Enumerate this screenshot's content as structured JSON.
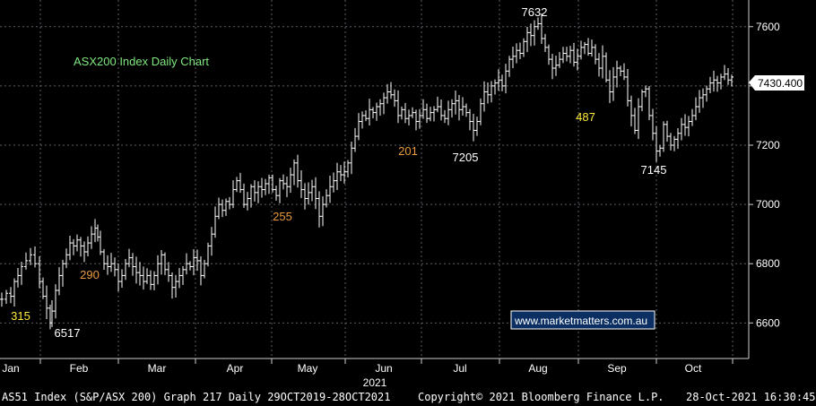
{
  "chart_data": {
    "type": "ohlc-bar",
    "title": "ASX200 Index Daily Chart",
    "x_months": [
      "Jan",
      "Feb",
      "Mar",
      "Apr",
      "May",
      "Jun",
      "Jul",
      "Aug",
      "Sep",
      "Oct"
    ],
    "x_year": "2021",
    "ylim": [
      6480,
      7690
    ],
    "yticks": [
      6600,
      6800,
      7000,
      7200,
      7400,
      7600
    ],
    "last_price": "7430.400",
    "grid": true,
    "points": [
      [
        0,
        6680
      ],
      [
        5,
        6700
      ],
      [
        10,
        6690
      ],
      [
        14,
        6740
      ],
      [
        18,
        6760
      ],
      [
        22,
        6790
      ],
      [
        27,
        6810
      ],
      [
        32,
        6830
      ],
      [
        37,
        6800
      ],
      [
        42,
        6740
      ],
      [
        46,
        6690
      ],
      [
        50,
        6650
      ],
      [
        54,
        6600
      ],
      [
        56,
        6640
      ],
      [
        60,
        6710
      ],
      [
        64,
        6760
      ],
      [
        68,
        6800
      ],
      [
        72,
        6830
      ],
      [
        76,
        6870
      ],
      [
        80,
        6860
      ],
      [
        84,
        6880
      ],
      [
        88,
        6860
      ],
      [
        92,
        6840
      ],
      [
        96,
        6870
      ],
      [
        100,
        6900
      ],
      [
        104,
        6920
      ],
      [
        107,
        6890
      ],
      [
        110,
        6840
      ],
      [
        114,
        6800
      ],
      [
        118,
        6790
      ],
      [
        122,
        6800
      ],
      [
        126,
        6780
      ],
      [
        130,
        6740
      ],
      [
        134,
        6760
      ],
      [
        138,
        6800
      ],
      [
        142,
        6820
      ],
      [
        146,
        6790
      ],
      [
        150,
        6770
      ],
      [
        154,
        6760
      ],
      [
        158,
        6740
      ],
      [
        162,
        6760
      ],
      [
        166,
        6730
      ],
      [
        170,
        6760
      ],
      [
        174,
        6800
      ],
      [
        178,
        6830
      ],
      [
        182,
        6780
      ],
      [
        186,
        6760
      ],
      [
        190,
        6720
      ],
      [
        194,
        6740
      ],
      [
        198,
        6760
      ],
      [
        202,
        6780
      ],
      [
        206,
        6800
      ],
      [
        210,
        6790
      ],
      [
        214,
        6820
      ],
      [
        218,
        6810
      ],
      [
        222,
        6760
      ],
      [
        226,
        6800
      ],
      [
        230,
        6860
      ],
      [
        234,
        6900
      ],
      [
        238,
        6960
      ],
      [
        242,
        7000
      ],
      [
        246,
        6980
      ],
      [
        250,
        7010
      ],
      [
        254,
        7000
      ],
      [
        258,
        7050
      ],
      [
        262,
        7080
      ],
      [
        266,
        7050
      ],
      [
        270,
        7000
      ],
      [
        274,
        7020
      ],
      [
        278,
        7060
      ],
      [
        282,
        7040
      ],
      [
        286,
        7060
      ],
      [
        290,
        7050
      ],
      [
        294,
        7070
      ],
      [
        298,
        7090
      ],
      [
        302,
        7050
      ],
      [
        306,
        7030
      ],
      [
        310,
        7080
      ],
      [
        314,
        7070
      ],
      [
        318,
        7060
      ],
      [
        322,
        7100
      ],
      [
        326,
        7140
      ],
      [
        330,
        7080
      ],
      [
        334,
        7050
      ],
      [
        338,
        7020
      ],
      [
        342,
        7040
      ],
      [
        346,
        7060
      ],
      [
        350,
        7020
      ],
      [
        354,
        6960
      ],
      [
        358,
        7000
      ],
      [
        362,
        7030
      ],
      [
        366,
        7060
      ],
      [
        370,
        7080
      ],
      [
        374,
        7110
      ],
      [
        378,
        7100
      ],
      [
        382,
        7110
      ],
      [
        386,
        7140
      ],
      [
        390,
        7190
      ],
      [
        394,
        7230
      ],
      [
        398,
        7280
      ],
      [
        402,
        7300
      ],
      [
        406,
        7290
      ],
      [
        410,
        7320
      ],
      [
        414,
        7310
      ],
      [
        418,
        7330
      ],
      [
        422,
        7340
      ],
      [
        426,
        7360
      ],
      [
        430,
        7380
      ],
      [
        434,
        7370
      ],
      [
        438,
        7350
      ],
      [
        442,
        7300
      ],
      [
        446,
        7320
      ],
      [
        450,
        7290
      ],
      [
        454,
        7300
      ],
      [
        458,
        7310
      ],
      [
        462,
        7280
      ],
      [
        466,
        7300
      ],
      [
        470,
        7320
      ],
      [
        474,
        7290
      ],
      [
        478,
        7310
      ],
      [
        482,
        7320
      ],
      [
        486,
        7330
      ],
      [
        490,
        7300
      ],
      [
        494,
        7290
      ],
      [
        498,
        7320
      ],
      [
        502,
        7340
      ],
      [
        506,
        7350
      ],
      [
        510,
        7320
      ],
      [
        514,
        7330
      ],
      [
        518,
        7310
      ],
      [
        522,
        7280
      ],
      [
        526,
        7250
      ],
      [
        530,
        7280
      ],
      [
        534,
        7340
      ],
      [
        538,
        7380
      ],
      [
        542,
        7370
      ],
      [
        546,
        7400
      ],
      [
        550,
        7410
      ],
      [
        554,
        7420
      ],
      [
        558,
        7400
      ],
      [
        562,
        7450
      ],
      [
        566,
        7490
      ],
      [
        570,
        7500
      ],
      [
        574,
        7520
      ],
      [
        578,
        7510
      ],
      [
        582,
        7550
      ],
      [
        586,
        7580
      ],
      [
        590,
        7570
      ],
      [
        594,
        7600
      ],
      [
        598,
        7610
      ],
      [
        602,
        7560
      ],
      [
        606,
        7530
      ],
      [
        610,
        7490
      ],
      [
        614,
        7460
      ],
      [
        618,
        7470
      ],
      [
        622,
        7490
      ],
      [
        626,
        7510
      ],
      [
        630,
        7500
      ],
      [
        634,
        7520
      ],
      [
        638,
        7480
      ],
      [
        642,
        7500
      ],
      [
        646,
        7530
      ],
      [
        650,
        7540
      ],
      [
        654,
        7510
      ],
      [
        658,
        7530
      ],
      [
        662,
        7490
      ],
      [
        666,
        7460
      ],
      [
        670,
        7500
      ],
      [
        674,
        7420
      ],
      [
        678,
        7380
      ],
      [
        682,
        7430
      ],
      [
        686,
        7460
      ],
      [
        690,
        7450
      ],
      [
        694,
        7430
      ],
      [
        698,
        7350
      ],
      [
        702,
        7300
      ],
      [
        706,
        7250
      ],
      [
        710,
        7330
      ],
      [
        714,
        7380
      ],
      [
        718,
        7390
      ],
      [
        722,
        7300
      ],
      [
        726,
        7240
      ],
      [
        730,
        7180
      ],
      [
        734,
        7190
      ],
      [
        738,
        7270
      ],
      [
        742,
        7230
      ],
      [
        746,
        7200
      ],
      [
        750,
        7220
      ],
      [
        754,
        7240
      ],
      [
        758,
        7270
      ],
      [
        762,
        7260
      ],
      [
        766,
        7280
      ],
      [
        770,
        7300
      ],
      [
        774,
        7330
      ],
      [
        778,
        7360
      ],
      [
        782,
        7370
      ],
      [
        786,
        7390
      ],
      [
        790,
        7410
      ],
      [
        794,
        7420
      ],
      [
        798,
        7410
      ],
      [
        802,
        7430
      ],
      [
        806,
        7440
      ],
      [
        810,
        7420
      ],
      [
        814,
        7430
      ]
    ],
    "annotations": [
      {
        "text": "7632",
        "color": "#ffffff"
      },
      {
        "text": "201",
        "color": "#e89a3c"
      },
      {
        "text": "7205",
        "color": "#ffffff"
      },
      {
        "text": "487",
        "color": "#ffeb3b"
      },
      {
        "text": "7145",
        "color": "#ffffff"
      },
      {
        "text": "255",
        "color": "#e89a3c"
      },
      {
        "text": "290",
        "color": "#e89a3c"
      },
      {
        "text": "315",
        "color": "#ffeb3b"
      },
      {
        "text": "6517",
        "color": "#ffffff"
      }
    ],
    "watermark": "www.marketmatters.com.au",
    "title_color": "#7fe87f",
    "grid_color": "#5a6066"
  },
  "footer": {
    "left": "AS51 Index (S&P/ASX 200) Graph 217  Daily 29OCT2019-28OCT2021",
    "center": "Copyright© 2021 Bloomberg Finance L.P.",
    "right": "28-Oct-2021 16:30:45"
  }
}
